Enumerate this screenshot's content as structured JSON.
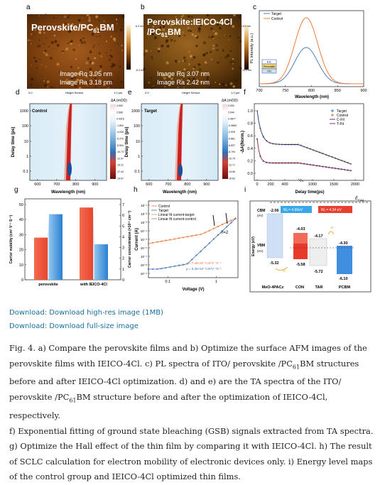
{
  "panels": {
    "a": {
      "letter": "a",
      "title": "Perovskite/PC",
      "title_sub": "61",
      "title_tail": "BM",
      "rq": "Image Rq 3.95 nm",
      "ra": "Image Ra 3.18 nm",
      "scale_top": "6.3 nm",
      "scale_bot": "-6.3 nm",
      "axis_left": "0.0",
      "axis_mid": "Height Sensor",
      "axis_right": "1.0 μm"
    },
    "b": {
      "letter": "b",
      "title": "Perovskite:IEICO-4Cl",
      "title2": "/PC",
      "title2_sub": "61",
      "title2_tail": "BM",
      "rq": "Image Rq 3.07 nm",
      "ra": "Image Ra 2.42 nm",
      "scale_top": "14.0 nm",
      "scale_bot": "-13.0 nm",
      "axis_left": "0.0",
      "axis_mid": "Height Sensor",
      "axis_right": "1.0 μm"
    },
    "c": {
      "letter": "c",
      "ylabel": "PL intensity (a.u.)",
      "xlabel": "Wavelength (nm)",
      "legend": [
        "Target",
        "Control"
      ],
      "stack": [
        "ETL",
        "Perovskite",
        "ITO"
      ]
    },
    "d": {
      "letter": "d",
      "label": "Control",
      "ylabel": "Delay time (ps)",
      "xlabel": "Wavelength (nm)",
      "cbar_title": "ΔA (mOD)",
      "cbar_ticks": [
        "4.900",
        "2.666",
        "0.4316",
        "-1.802",
        "-4.036",
        "-6.270",
        "-8.504",
        "-10.74",
        "-12.97",
        "-15.21",
        "-17.44",
        "-19.67"
      ]
    },
    "e": {
      "letter": "e",
      "label": "Target",
      "ylabel": "Delay time (ps)",
      "xlabel": "Wavelength (nm)",
      "cbar_title": "ΔA (mOD)",
      "cbar_ticks": [
        "4.900",
        "2.944",
        "0.9877",
        "-0.9684",
        "-2.925",
        "-4.881",
        "-6.837",
        "-8.794",
        "-10.75",
        "-12.71",
        "-14.66",
        "-16.62"
      ]
    },
    "f": {
      "letter": "f",
      "ylabel": "-ΔA(Norm.)",
      "xlabel": "Delay time(ps)",
      "legend": [
        "Target",
        "Control",
        "C-Fit",
        "T-Fit"
      ]
    },
    "g": {
      "letter": "g",
      "ylabel_left": "Carrier mobility (cm² V⁻¹ S⁻¹)",
      "ylabel_right": "Carrier concentration (×10¹² cm⁻³)",
      "xticks": [
        "perovskite",
        "with IEICO-4Cl"
      ]
    },
    "h": {
      "letter": "h",
      "ylabel": "Current (A)",
      "xlabel": "Voltage (V)",
      "legend": [
        "Control",
        "Target",
        "Linear fit current-target",
        "Linear fit current-control"
      ],
      "n_label": "n=2",
      "mu1": "μ = 7.46×10⁻⁵cm²V⁻¹S⁻¹",
      "mu2": "μ = 5.25×10⁻⁵cm²V⁻¹S⁻¹"
    },
    "i": {
      "letter": "i",
      "ylabel": "Energy (eV)",
      "efermi": "E",
      "efermi_sub": "F,Ag",
      "cbm": "CBM",
      "cbm_unit": "(eV)",
      "vbm": "VBM",
      "vbm_unit": "(eV)",
      "wf1": "W",
      "wf1_sub": "f",
      "wf1_val": " = 4.66eV",
      "wf2": "W",
      "wf2_sub": "f",
      "wf2_val": " = 4.34 eV",
      "materials": [
        "MeO-4PACz",
        "CON",
        "TAR",
        "PCBM"
      ],
      "levels": [
        "-2.06",
        "-4.03",
        "-4.17",
        "-4.30",
        "-5.32",
        "-5.58",
        "-5.72",
        "-6.10"
      ],
      "hplus": "h⁺",
      "eminus": "e⁻"
    }
  },
  "chart_data": [
    {
      "panel": "c",
      "type": "line",
      "x_ticks": [
        700,
        750,
        800,
        850,
        900
      ],
      "xlim": [
        700,
        900
      ],
      "series": [
        {
          "name": "Target",
          "peak_x": 790,
          "relative_peak": 0.55
        },
        {
          "name": "Control",
          "peak_x": 790,
          "relative_peak": 1.0
        }
      ]
    },
    {
      "panel": "d",
      "type": "heatmap",
      "x_ticks": [
        600,
        700,
        800,
        900
      ],
      "y_ticks": [
        "1000",
        "100",
        "10",
        "1",
        "0.1"
      ]
    },
    {
      "panel": "e",
      "type": "heatmap",
      "x_ticks": [
        600,
        700,
        800,
        900
      ],
      "y_ticks": [
        "1000",
        "100",
        "10",
        "1",
        "0.1"
      ]
    },
    {
      "panel": "f",
      "type": "scatter",
      "y_ticks": [
        "1.0",
        "0.8",
        "0.6",
        "0.4",
        "0.2",
        "0.0"
      ],
      "x_ticks": [
        "0",
        "200",
        "400",
        "1000",
        "1500",
        "2000"
      ],
      "ylim": [
        0,
        1
      ]
    },
    {
      "panel": "g",
      "type": "bar",
      "categories": [
        "perovskite",
        "with IEICO-4Cl"
      ],
      "left_ticks": [
        0,
        10,
        20,
        30,
        40,
        50
      ],
      "right_ticks": [
        0,
        1,
        2,
        3,
        4,
        5,
        6,
        7
      ],
      "series": [
        {
          "name": "Carrier mobility",
          "values": [
            28,
            48
          ]
        },
        {
          "name": "Carrier concentration",
          "values": [
            6.1,
            3.3
          ]
        }
      ]
    },
    {
      "panel": "h",
      "type": "line",
      "x_ticks": [
        "0.1",
        "1"
      ],
      "y_ticks": [
        "10⁻¹",
        "10⁻²",
        "10⁻³",
        "10⁻⁴",
        "10⁻⁵",
        "10⁻⁶",
        "10⁻⁷",
        "10⁻⁸",
        "10⁻⁹"
      ]
    }
  ],
  "links": {
    "high_res": "Download: Download high-res image (1MB)",
    "full_size": "Download: Download full-size image"
  },
  "caption": {
    "l1": "Fig. 4. a) Compare the perovskite films and b) Optimize the surface AFM images of the",
    "l2": "perovskite films with IEICO-4Cl. c) PL spectra of ITO/ perovskite /PC",
    "l2_sub": "61",
    "l2_tail": "BM structures",
    "l3": "before and after IEICO-4Cl optimization. d) and e) are the TA spectra of the ITO/",
    "l4": "perovskite /PC",
    "l4_sub": "61",
    "l4_tail": "BM structure before and after the optimization of IEICO-4Cl, respectively.",
    "l5": "f) Exponential fitting of ground state bleaching (GSB) signals extracted from TA spectra.",
    "l6": "g) Optimize the Hall effect of the thin film by comparing it with IEICO-4Cl. h) The result",
    "l7": "of SCLC calculation for electron mobility of electronic devices only. i) Energy level maps",
    "l8": "of the control group and IEICO-4Cl optimized thin films."
  }
}
